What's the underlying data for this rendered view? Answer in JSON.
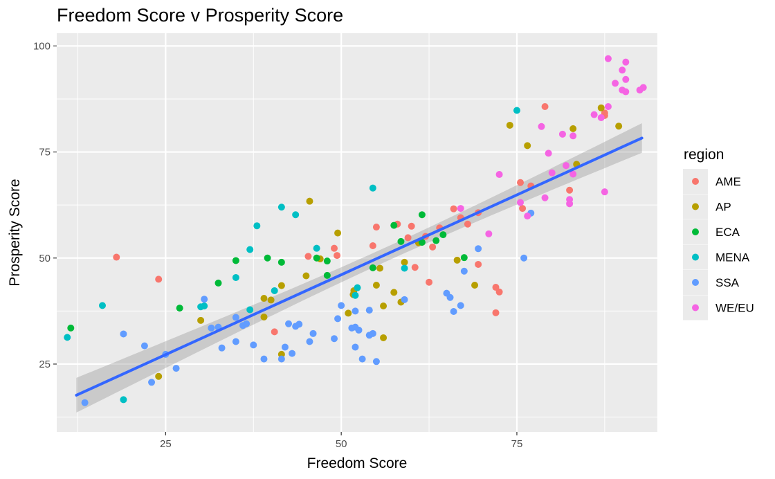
{
  "chart_data": {
    "type": "scatter",
    "title": "Freedom Score v Prosperity Score",
    "xlabel": "Freedom Score",
    "ylabel": "Prosperity Score",
    "xlim": [
      9.5,
      95
    ],
    "ylim": [
      9,
      103
    ],
    "x_ticks": [
      25,
      50,
      75
    ],
    "y_ticks": [
      25,
      50,
      75,
      100
    ],
    "grid": true,
    "legend": {
      "title": "region",
      "position": "right"
    },
    "colors": {
      "AME": "#F8766D",
      "AP": "#B79F00",
      "ECA": "#00BA38",
      "MENA": "#00BFC4",
      "SSA": "#619CFF",
      "WE/EU": "#F564E3"
    },
    "series": [
      {
        "name": "AME",
        "points": [
          [
            18,
            50.2
          ],
          [
            24,
            45
          ],
          [
            40.5,
            32.6
          ],
          [
            45.3,
            50.4
          ],
          [
            49,
            52.3
          ],
          [
            49.4,
            50.6
          ],
          [
            54.5,
            52.9
          ],
          [
            55,
            57.3
          ],
          [
            58,
            58
          ],
          [
            59.5,
            54.8
          ],
          [
            60,
            57.5
          ],
          [
            60.5,
            47.8
          ],
          [
            62,
            55.1
          ],
          [
            62.5,
            44.3
          ],
          [
            63,
            52.6
          ],
          [
            64,
            57.1
          ],
          [
            66,
            61.6
          ],
          [
            67,
            59.5
          ],
          [
            68,
            58
          ],
          [
            69.5,
            60.7
          ],
          [
            69.5,
            48.5
          ],
          [
            72,
            43.1
          ],
          [
            72.5,
            42
          ],
          [
            72,
            37.1
          ],
          [
            75.5,
            67.8
          ],
          [
            75.8,
            61.7
          ],
          [
            77,
            67
          ],
          [
            79,
            85.7
          ],
          [
            82.5,
            66
          ],
          [
            87.5,
            83.6
          ],
          [
            87.5,
            84.2
          ]
        ]
      },
      {
        "name": "AP",
        "points": [
          [
            24,
            22.1
          ],
          [
            30,
            35.3
          ],
          [
            39,
            40.5
          ],
          [
            39,
            36.1
          ],
          [
            40,
            40.1
          ],
          [
            41.5,
            27.3
          ],
          [
            41.5,
            43.5
          ],
          [
            45,
            45.8
          ],
          [
            45.5,
            63.4
          ],
          [
            47,
            49.8
          ],
          [
            49.5,
            55.9
          ],
          [
            51,
            37
          ],
          [
            51.7,
            41.4
          ],
          [
            51.8,
            42.3
          ],
          [
            55,
            43.6
          ],
          [
            55.5,
            47.6
          ],
          [
            56,
            31.2
          ],
          [
            56,
            38.7
          ],
          [
            57.5,
            41.9
          ],
          [
            58.5,
            39.6
          ],
          [
            59,
            49
          ],
          [
            61,
            53.6
          ],
          [
            66.5,
            49.5
          ],
          [
            69,
            43.6
          ],
          [
            74,
            81.3
          ],
          [
            76.5,
            76.5
          ],
          [
            83,
            80.5
          ],
          [
            83.5,
            72.1
          ],
          [
            87,
            85.4
          ],
          [
            89.5,
            81.1
          ]
        ]
      },
      {
        "name": "ECA",
        "points": [
          [
            11.5,
            33.5
          ],
          [
            27,
            38.2
          ],
          [
            32.5,
            44.1
          ],
          [
            35,
            49.4
          ],
          [
            39.5,
            50
          ],
          [
            41.5,
            49
          ],
          [
            46.5,
            50
          ],
          [
            48,
            49.3
          ],
          [
            48,
            45.9
          ],
          [
            54.5,
            47.7
          ],
          [
            57.5,
            57.7
          ],
          [
            58.5,
            53.9
          ],
          [
            61.5,
            53.7
          ],
          [
            61.5,
            60.2
          ],
          [
            63.5,
            54.1
          ],
          [
            64.5,
            55.5
          ],
          [
            67.5,
            50.1
          ]
        ]
      },
      {
        "name": "MENA",
        "points": [
          [
            11,
            31.3
          ],
          [
            16,
            38.8
          ],
          [
            19,
            16.6
          ],
          [
            30,
            38.5
          ],
          [
            30.5,
            38.7
          ],
          [
            35,
            45.4
          ],
          [
            37,
            52
          ],
          [
            37,
            37.8
          ],
          [
            38,
            57.6
          ],
          [
            40.5,
            42.3
          ],
          [
            41.5,
            62
          ],
          [
            43.5,
            60.2
          ],
          [
            46.5,
            52.3
          ],
          [
            52,
            41.2
          ],
          [
            52.3,
            43
          ],
          [
            54.5,
            66.5
          ],
          [
            59,
            47.6
          ],
          [
            75,
            84.8
          ]
        ]
      },
      {
        "name": "SSA",
        "points": [
          [
            13.5,
            15.9
          ],
          [
            19,
            32.1
          ],
          [
            22,
            29.3
          ],
          [
            23,
            20.7
          ],
          [
            25,
            27.3
          ],
          [
            26.5,
            24
          ],
          [
            30.5,
            40.3
          ],
          [
            31.5,
            33.5
          ],
          [
            32.5,
            33.7
          ],
          [
            33,
            28.8
          ],
          [
            35,
            36
          ],
          [
            35,
            30.3
          ],
          [
            36,
            34.1
          ],
          [
            36.5,
            34.5
          ],
          [
            37.5,
            29.5
          ],
          [
            39,
            26.2
          ],
          [
            41.5,
            26.2
          ],
          [
            42,
            29
          ],
          [
            42.5,
            34.5
          ],
          [
            43,
            27.5
          ],
          [
            43.5,
            33.9
          ],
          [
            44,
            34.4
          ],
          [
            45.5,
            30.3
          ],
          [
            46,
            32.2
          ],
          [
            49,
            31
          ],
          [
            49.5,
            35.7
          ],
          [
            50,
            38.8
          ],
          [
            51.5,
            33.5
          ],
          [
            52,
            33.7
          ],
          [
            52,
            29
          ],
          [
            52.5,
            33
          ],
          [
            52,
            37.5
          ],
          [
            53,
            26.2
          ],
          [
            54,
            37.7
          ],
          [
            54,
            31.8
          ],
          [
            54.5,
            32.2
          ],
          [
            55,
            25.6
          ],
          [
            59,
            40.2
          ],
          [
            65,
            41.7
          ],
          [
            65.5,
            40.7
          ],
          [
            66,
            37.4
          ],
          [
            67,
            38.8
          ],
          [
            67.5,
            46.9
          ],
          [
            69.5,
            52.2
          ],
          [
            76,
            50
          ],
          [
            77,
            60.6
          ]
        ]
      },
      {
        "name": "WE/EU",
        "points": [
          [
            67,
            61.7
          ],
          [
            71,
            55.7
          ],
          [
            72.5,
            69.7
          ],
          [
            75.5,
            63.1
          ],
          [
            76.5,
            59.9
          ],
          [
            78.5,
            81
          ],
          [
            79,
            64.2
          ],
          [
            79.5,
            74.7
          ],
          [
            80,
            70.1
          ],
          [
            81.5,
            79.2
          ],
          [
            82,
            71.8
          ],
          [
            82.5,
            63.8
          ],
          [
            82.5,
            62.8
          ],
          [
            83,
            78.8
          ],
          [
            83,
            69.8
          ],
          [
            86,
            83.8
          ],
          [
            87,
            83.1
          ],
          [
            87.5,
            65.6
          ],
          [
            88,
            97
          ],
          [
            88,
            85.7
          ],
          [
            89,
            91.2
          ],
          [
            90,
            94.3
          ],
          [
            90.5,
            92.1
          ],
          [
            90.5,
            96.2
          ],
          [
            90,
            89.6
          ],
          [
            90.5,
            89.2
          ],
          [
            92.5,
            89.6
          ],
          [
            93,
            90.2
          ]
        ]
      }
    ],
    "trend_line": {
      "method": "linear",
      "start": [
        12.3,
        16.8
      ],
      "end": [
        92.8,
        78.6
      ],
      "confidence_band": true
    }
  }
}
